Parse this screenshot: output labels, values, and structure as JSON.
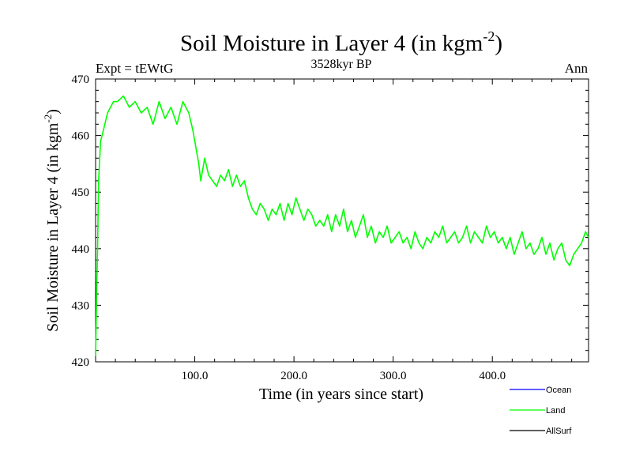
{
  "header": {
    "title_main": "Soil Moisture in Layer 4 (in kgm",
    "title_sup": "-2",
    "title_end": ")",
    "subtitle": "3528kyr BP",
    "left_label": "Expt = tEWtG",
    "right_label": "Ann"
  },
  "legend": {
    "items": [
      {
        "label": "Ocean",
        "color": "#0000ff"
      },
      {
        "label": "Land",
        "color": "#00ff00"
      },
      {
        "label": "AllSurf",
        "color": "#000000"
      }
    ]
  },
  "chart_data": {
    "type": "line",
    "xlabel": "Time (in years since start)",
    "ylabel_main": "Soil Moisture in Layer 4 (in kgm",
    "ylabel_sup": "-2",
    "ylabel_end": ")",
    "xlim": [
      0,
      497
    ],
    "ylim": [
      420,
      470
    ],
    "x_ticks": [
      100,
      200,
      300,
      400
    ],
    "x_tick_labels": [
      "100.0",
      "200.0",
      "300.0",
      "400.0"
    ],
    "y_ticks": [
      420,
      430,
      440,
      450,
      460,
      470
    ],
    "y_tick_labels": [
      "420",
      "430",
      "440",
      "450",
      "460",
      "470"
    ],
    "series": [
      {
        "name": "Land",
        "color": "#00ff00",
        "x": [
          0,
          1,
          2,
          3,
          5,
          8,
          12,
          18,
          22,
          28,
          34,
          40,
          46,
          52,
          58,
          64,
          70,
          76,
          82,
          88,
          94,
          98,
          100,
          102,
          104,
          106,
          108,
          110,
          114,
          118,
          122,
          126,
          130,
          134,
          138,
          142,
          146,
          150,
          154,
          158,
          162,
          166,
          170,
          174,
          178,
          182,
          186,
          190,
          194,
          198,
          202,
          206,
          210,
          214,
          218,
          222,
          226,
          230,
          234,
          238,
          242,
          246,
          250,
          254,
          258,
          262,
          266,
          270,
          274,
          278,
          282,
          286,
          290,
          294,
          298,
          302,
          306,
          310,
          314,
          318,
          322,
          326,
          330,
          334,
          338,
          342,
          346,
          350,
          354,
          358,
          362,
          366,
          370,
          374,
          378,
          382,
          386,
          390,
          394,
          398,
          402,
          406,
          410,
          414,
          418,
          422,
          426,
          430,
          434,
          438,
          442,
          446,
          450,
          454,
          458,
          462,
          466,
          470,
          474,
          478,
          482,
          486,
          490,
          494,
          497
        ],
        "values": [
          421,
          432,
          440,
          452,
          459,
          461,
          464,
          466,
          466,
          467,
          465,
          466,
          464,
          465,
          462,
          466,
          463,
          465,
          462,
          466,
          464,
          461,
          459,
          457,
          455,
          452,
          454,
          456,
          453,
          452,
          451,
          453,
          452,
          454,
          451,
          453,
          451,
          452,
          449,
          447,
          446,
          448,
          447,
          445,
          447,
          446,
          448,
          445,
          448,
          446,
          449,
          447,
          445,
          447,
          446,
          444,
          445,
          444,
          446,
          443,
          446,
          444,
          447,
          443,
          445,
          442,
          444,
          446,
          442,
          444,
          441,
          443,
          442,
          444,
          441,
          442,
          443,
          441,
          442,
          440,
          443,
          441,
          440,
          442,
          441,
          443,
          442,
          444,
          441,
          442,
          443,
          441,
          442,
          444,
          441,
          443,
          442,
          441,
          444,
          442,
          443,
          441,
          442,
          440,
          442,
          439,
          441,
          443,
          440,
          441,
          439,
          440,
          442,
          439,
          441,
          438,
          440,
          441,
          438,
          437,
          439,
          440,
          441,
          443,
          442
        ]
      }
    ]
  }
}
